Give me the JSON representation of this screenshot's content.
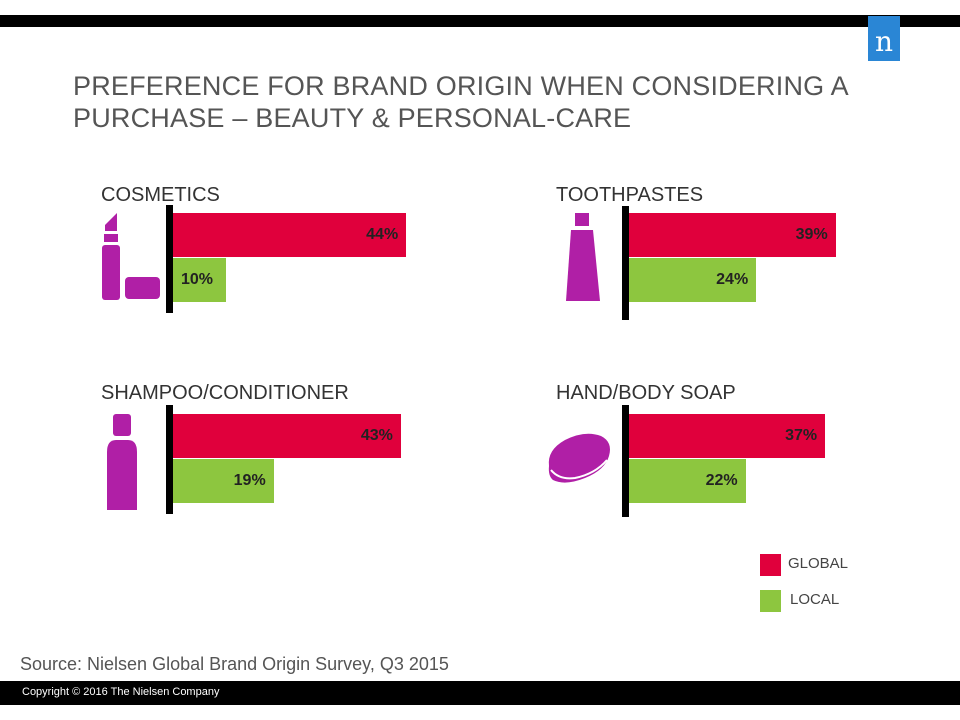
{
  "header": {
    "logo_letter": "n",
    "title": "PREFERENCE FOR BRAND ORIGIN WHEN CONSIDERING A PURCHASE – BEAUTY & PERSONAL-CARE"
  },
  "colors": {
    "global": "#e0003c",
    "local": "#8dc63f",
    "icon": "#b01fa6",
    "logo": "#2a86d5"
  },
  "chart_data": {
    "type": "bar",
    "orientation": "horizontal",
    "series_names": [
      "GLOBAL",
      "LOCAL"
    ],
    "panels": [
      {
        "title": "COSMETICS",
        "icon": "lipstick-icon",
        "global": 44,
        "local": 10,
        "global_label": "44%",
        "local_label": "10%"
      },
      {
        "title": "TOOTHPASTES",
        "icon": "toothpaste-tube-icon",
        "global": 39,
        "local": 24,
        "global_label": "39%",
        "local_label": "24%"
      },
      {
        "title": "SHAMPOO/CONDITIONER",
        "icon": "shampoo-bottle-icon",
        "global": 43,
        "local": 19,
        "global_label": "43%",
        "local_label": "19%"
      },
      {
        "title": "HAND/BODY SOAP",
        "icon": "soap-bar-icon",
        "global": 37,
        "local": 22,
        "global_label": "37%",
        "local_label": "22%"
      }
    ],
    "legend": [
      {
        "name": "GLOBAL",
        "color": "#e0003c"
      },
      {
        "name": "LOCAL",
        "color": "#8dc63f"
      }
    ],
    "legend_position": "bottom-right"
  },
  "source": "Source:  Nielsen Global Brand Origin Survey, Q3 2015",
  "footer": {
    "copyright": "Copyright © 2016 The Nielsen Company"
  }
}
